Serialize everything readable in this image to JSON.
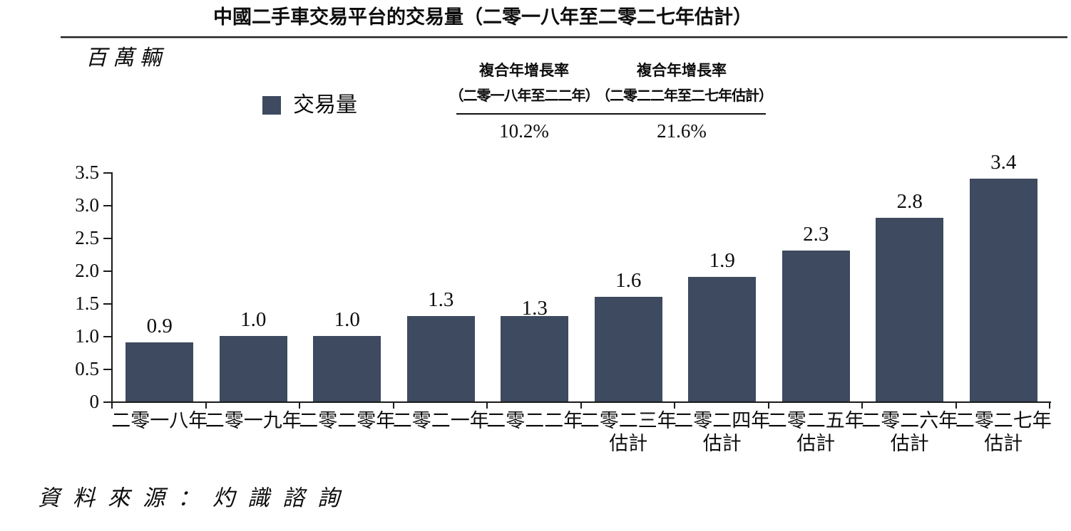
{
  "source": "資料來源：灼識諮詢",
  "chart_data": {
    "type": "bar",
    "title": "中國二手車交易平台的交易量（二零一八年至二零二七年估計）",
    "ylabel": "百萬輛",
    "legend": [
      "交易量"
    ],
    "legend_position": "top",
    "bar_color": "#3d4a5f",
    "grid": false,
    "ylim": [
      0,
      3.5
    ],
    "ytick_labels": [
      "0",
      "0.5",
      "1.0",
      "1.5",
      "2.0",
      "2.5",
      "3.0",
      "3.5"
    ],
    "categories": [
      "二零一八年",
      "二零一九年",
      "二零二零年",
      "二零二一年",
      "二零二二年",
      "二零二三年估計",
      "二零二四年估計",
      "二零二五年估計",
      "二零二六年估計",
      "二零二七年估計"
    ],
    "category_lines": [
      [
        "二零一八年"
      ],
      [
        "二零一九年"
      ],
      [
        "二零二零年"
      ],
      [
        "二零二一年"
      ],
      [
        "二零二二年"
      ],
      [
        "二零二三年",
        "估計"
      ],
      [
        "二零二四年",
        "估計"
      ],
      [
        "二零二五年",
        "估計"
      ],
      [
        "二零二六年",
        "估計"
      ],
      [
        "二零二七年",
        "估計"
      ]
    ],
    "values": [
      0.9,
      1.0,
      1.0,
      1.3,
      1.3,
      1.6,
      1.9,
      2.3,
      2.8,
      3.4
    ],
    "annotations": [
      {
        "title": "複合年增長率",
        "period": "（二零一八年至二二年）",
        "value": "10.2%"
      },
      {
        "title": "複合年增長率",
        "period": "（二零二二年至二七年估計）",
        "value": "21.6%"
      }
    ]
  }
}
